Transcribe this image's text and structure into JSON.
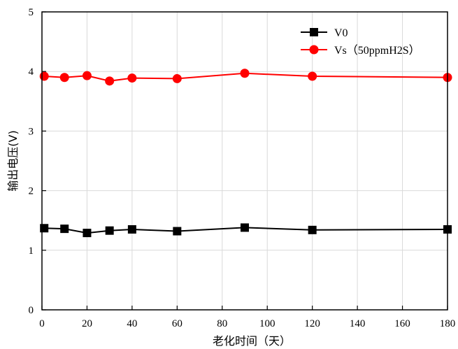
{
  "chart_data": {
    "type": "line",
    "title": "",
    "xlabel": "老化时间（天）",
    "ylabel": "输出电压(V)",
    "xlim": [
      0,
      180
    ],
    "ylim": [
      0,
      5
    ],
    "xticks": [
      "0",
      "20",
      "40",
      "60",
      "80",
      "100",
      "120",
      "140",
      "160",
      "180"
    ],
    "yticks": [
      "0",
      "1",
      "2",
      "3",
      "4",
      "5"
    ],
    "grid": true,
    "legend_position": "top-right",
    "series": [
      {
        "name": "V0",
        "color": "#000000",
        "marker": "square",
        "x": [
          1,
          10,
          20,
          30,
          40,
          60,
          90,
          120,
          180
        ],
        "y": [
          1.37,
          1.36,
          1.29,
          1.33,
          1.35,
          1.32,
          1.38,
          1.34,
          1.35
        ]
      },
      {
        "name": "Vs（50ppmH2S）",
        "color": "#ff0000",
        "marker": "circle",
        "x": [
          1,
          10,
          20,
          30,
          40,
          60,
          90,
          120,
          180
        ],
        "y": [
          3.92,
          3.9,
          3.93,
          3.84,
          3.89,
          3.88,
          3.97,
          3.92,
          3.9
        ]
      }
    ]
  }
}
